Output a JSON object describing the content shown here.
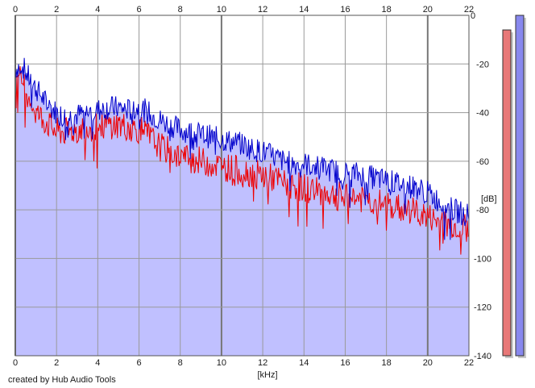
{
  "chart_data": {
    "type": "area",
    "xlabel": "[kHz]",
    "ylabel": "[dB]",
    "xlim": [
      0,
      22
    ],
    "ylim": [
      -140,
      0
    ],
    "x_ticks": [
      0,
      2,
      4,
      6,
      8,
      10,
      12,
      14,
      16,
      18,
      20,
      22
    ],
    "y_ticks": [
      0,
      -20,
      -40,
      -60,
      -80,
      -100,
      -120,
      -140
    ],
    "grid": true,
    "fill_color": "#c0c0ff",
    "series": [
      {
        "color": "#0000cc",
        "x": [
          0,
          0.3,
          0.6,
          1,
          1.5,
          2,
          2.5,
          3,
          3.5,
          4,
          4.5,
          5,
          5.5,
          6,
          6.5,
          7,
          7.5,
          8,
          8.5,
          9,
          9.5,
          10,
          10.5,
          11,
          11.5,
          12,
          12.5,
          13,
          13.5,
          14,
          14.5,
          15,
          15.5,
          16,
          16.5,
          17,
          17.5,
          18,
          18.5,
          19,
          19.5,
          20,
          20.5,
          21,
          21.5,
          22
        ],
        "values": [
          -22,
          -20,
          -25,
          -30,
          -36,
          -40,
          -42,
          -41,
          -40,
          -39,
          -38,
          -38,
          -39,
          -38,
          -40,
          -43,
          -45,
          -47,
          -48,
          -49,
          -50,
          -51,
          -52,
          -53,
          -55,
          -56,
          -58,
          -60,
          -61,
          -61,
          -62,
          -63,
          -64,
          -65,
          -65,
          -66,
          -67,
          -68,
          -69,
          -70,
          -71,
          -73,
          -76,
          -79,
          -81,
          -82
        ]
      },
      {
        "color": "#ee0000",
        "x": [
          0,
          0.3,
          0.6,
          1,
          1.5,
          2,
          2.5,
          3,
          3.5,
          4,
          4.5,
          5,
          5.5,
          6,
          6.5,
          7,
          7.5,
          8,
          8.5,
          9,
          9.5,
          10,
          10.5,
          11,
          11.5,
          12,
          12.5,
          13,
          13.5,
          14,
          14.5,
          15,
          15.5,
          16,
          16.5,
          17,
          17.5,
          18,
          18.5,
          19,
          19.5,
          20,
          20.5,
          21,
          21.5,
          22
        ],
        "values": [
          -28,
          -26,
          -32,
          -40,
          -44,
          -48,
          -48,
          -47,
          -46,
          -46,
          -45,
          -45,
          -46,
          -47,
          -50,
          -54,
          -56,
          -58,
          -59,
          -60,
          -61,
          -62,
          -63,
          -64,
          -65,
          -66,
          -67,
          -69,
          -70,
          -71,
          -72,
          -73,
          -74,
          -75,
          -75,
          -76,
          -77,
          -78,
          -79,
          -80,
          -81,
          -83,
          -85,
          -86,
          -87,
          -88
        ]
      }
    ],
    "meters": [
      {
        "color": "#e87878",
        "value": -6
      },
      {
        "color": "#8888ee",
        "value": 0
      }
    ]
  },
  "credit": "created by Hub Audio Tools"
}
